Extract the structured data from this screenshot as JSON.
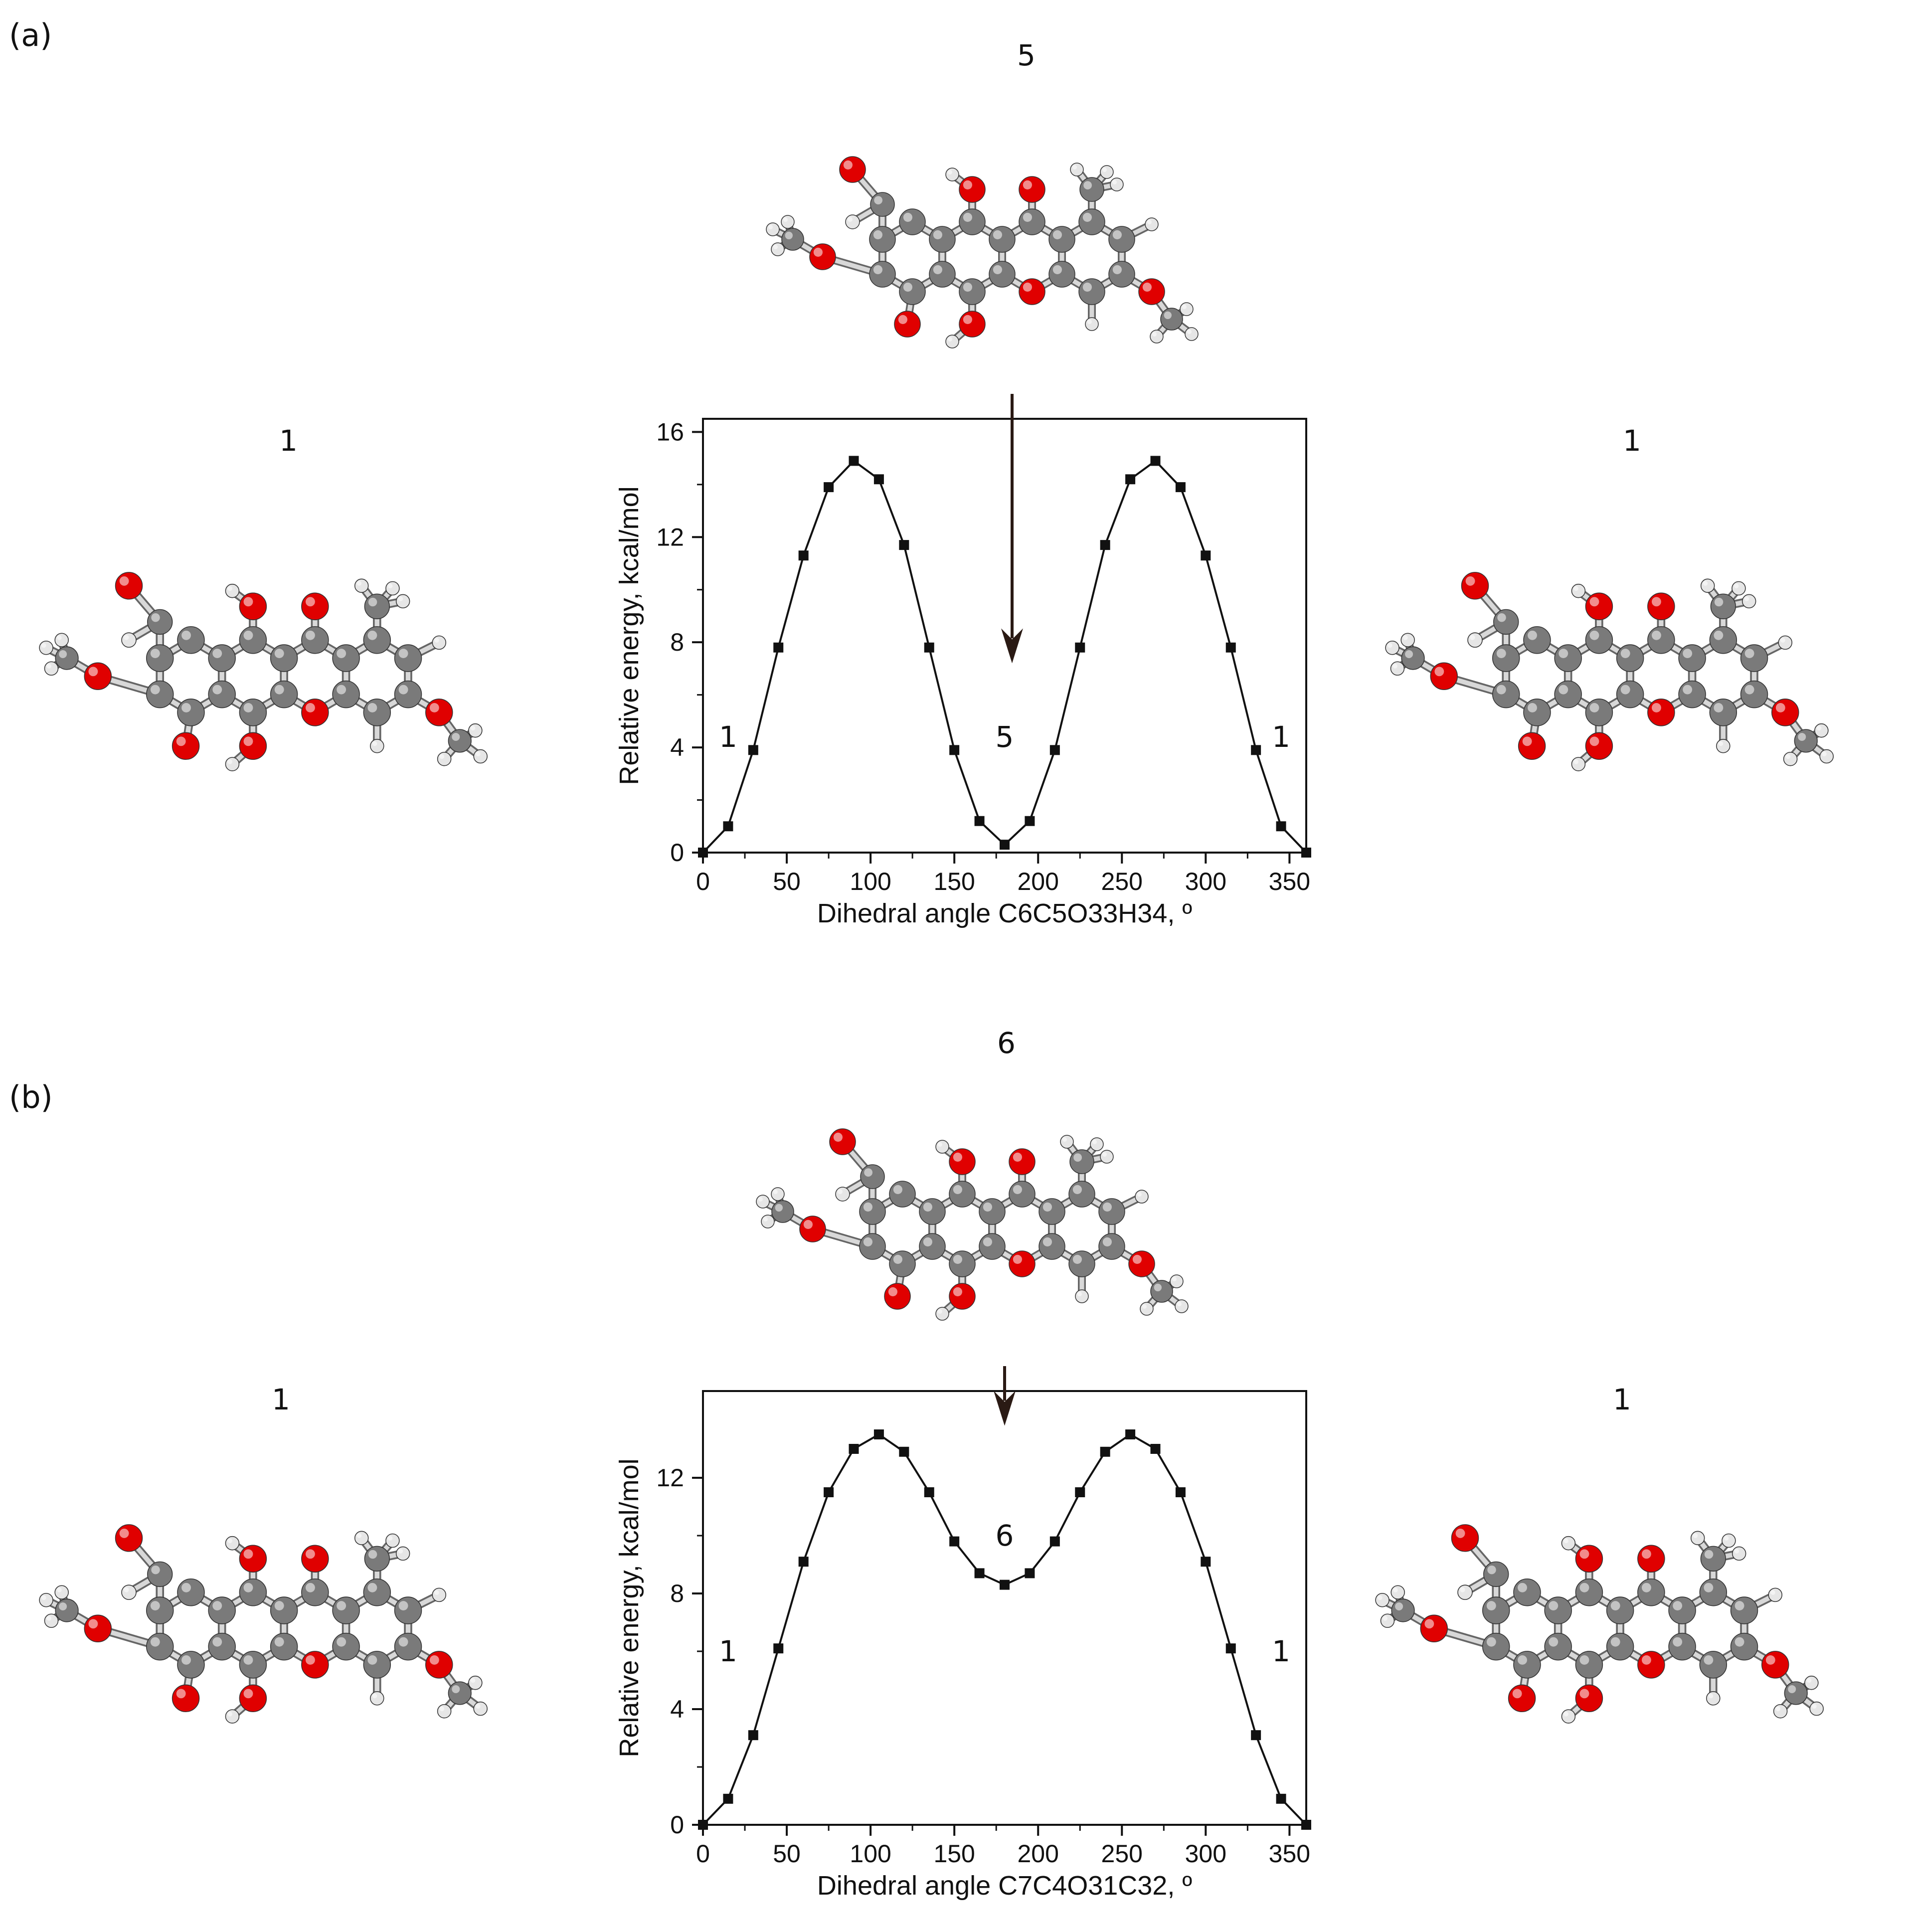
{
  "panels": [
    {
      "tag": "(a)",
      "top_label": "5",
      "left_label": "1",
      "right_label": "1"
    },
    {
      "tag": "(b)",
      "top_label": "6",
      "left_label": "1",
      "right_label": "1"
    }
  ],
  "atom_colors": {
    "carbon": "#7a7a7a",
    "oxygen": "#e00000",
    "hydrogen": "#e6e6e6",
    "bond": "#9a9a9a"
  },
  "chart_data": [
    {
      "type": "line",
      "xlabel": "Dihedral angle C6C5O33H34, º",
      "ylabel": "Relative energy, kcal/mol",
      "xlim": [
        0,
        360
      ],
      "ylim": [
        0,
        16.5
      ],
      "xticks": [
        0,
        50,
        100,
        150,
        200,
        250,
        300,
        350
      ],
      "yticks": [
        0,
        4,
        8,
        12,
        16
      ],
      "series": [
        {
          "x": [
            0,
            15,
            30,
            45,
            60,
            75,
            90,
            105,
            120,
            135,
            150,
            165,
            180,
            195,
            210,
            225,
            240,
            255,
            270,
            285,
            300,
            315,
            330,
            345,
            360
          ],
          "y": [
            0.0,
            1.0,
            3.9,
            7.8,
            11.3,
            13.9,
            14.9,
            14.2,
            11.7,
            7.8,
            3.9,
            1.2,
            0.3,
            1.2,
            3.9,
            7.8,
            11.7,
            14.2,
            14.9,
            13.9,
            11.3,
            7.8,
            3.9,
            1.0,
            0.0
          ]
        }
      ],
      "annotations": [
        {
          "text": "1",
          "x": 15,
          "y": 4.4
        },
        {
          "text": "5",
          "x": 180,
          "y": 4.4
        },
        {
          "text": "1",
          "x": 345,
          "y": 4.4
        }
      ],
      "arrow_x": 180
    },
    {
      "type": "line",
      "xlabel": "Dihedral angle C7C4O31C32, º",
      "ylabel": "Relative energy, kcal/mol",
      "xlim": [
        0,
        360
      ],
      "ylim": [
        0,
        15
      ],
      "xticks": [
        0,
        50,
        100,
        150,
        200,
        250,
        300,
        350
      ],
      "yticks": [
        0,
        4,
        8,
        12
      ],
      "series": [
        {
          "x": [
            0,
            15,
            30,
            45,
            60,
            75,
            90,
            105,
            120,
            135,
            150,
            165,
            180,
            195,
            210,
            225,
            240,
            255,
            270,
            285,
            300,
            315,
            330,
            345,
            360
          ],
          "y": [
            0.0,
            0.9,
            3.1,
            6.1,
            9.1,
            11.5,
            13.0,
            13.5,
            12.9,
            11.5,
            9.8,
            8.7,
            8.3,
            8.7,
            9.8,
            11.5,
            12.9,
            13.5,
            13.0,
            11.5,
            9.1,
            6.1,
            3.1,
            0.9,
            0.0
          ]
        }
      ],
      "annotations": [
        {
          "text": "1",
          "x": 15,
          "y": 6.0
        },
        {
          "text": "6",
          "x": 180,
          "y": 10.0
        },
        {
          "text": "1",
          "x": 345,
          "y": 6.0
        }
      ],
      "arrow_x": 180
    }
  ]
}
